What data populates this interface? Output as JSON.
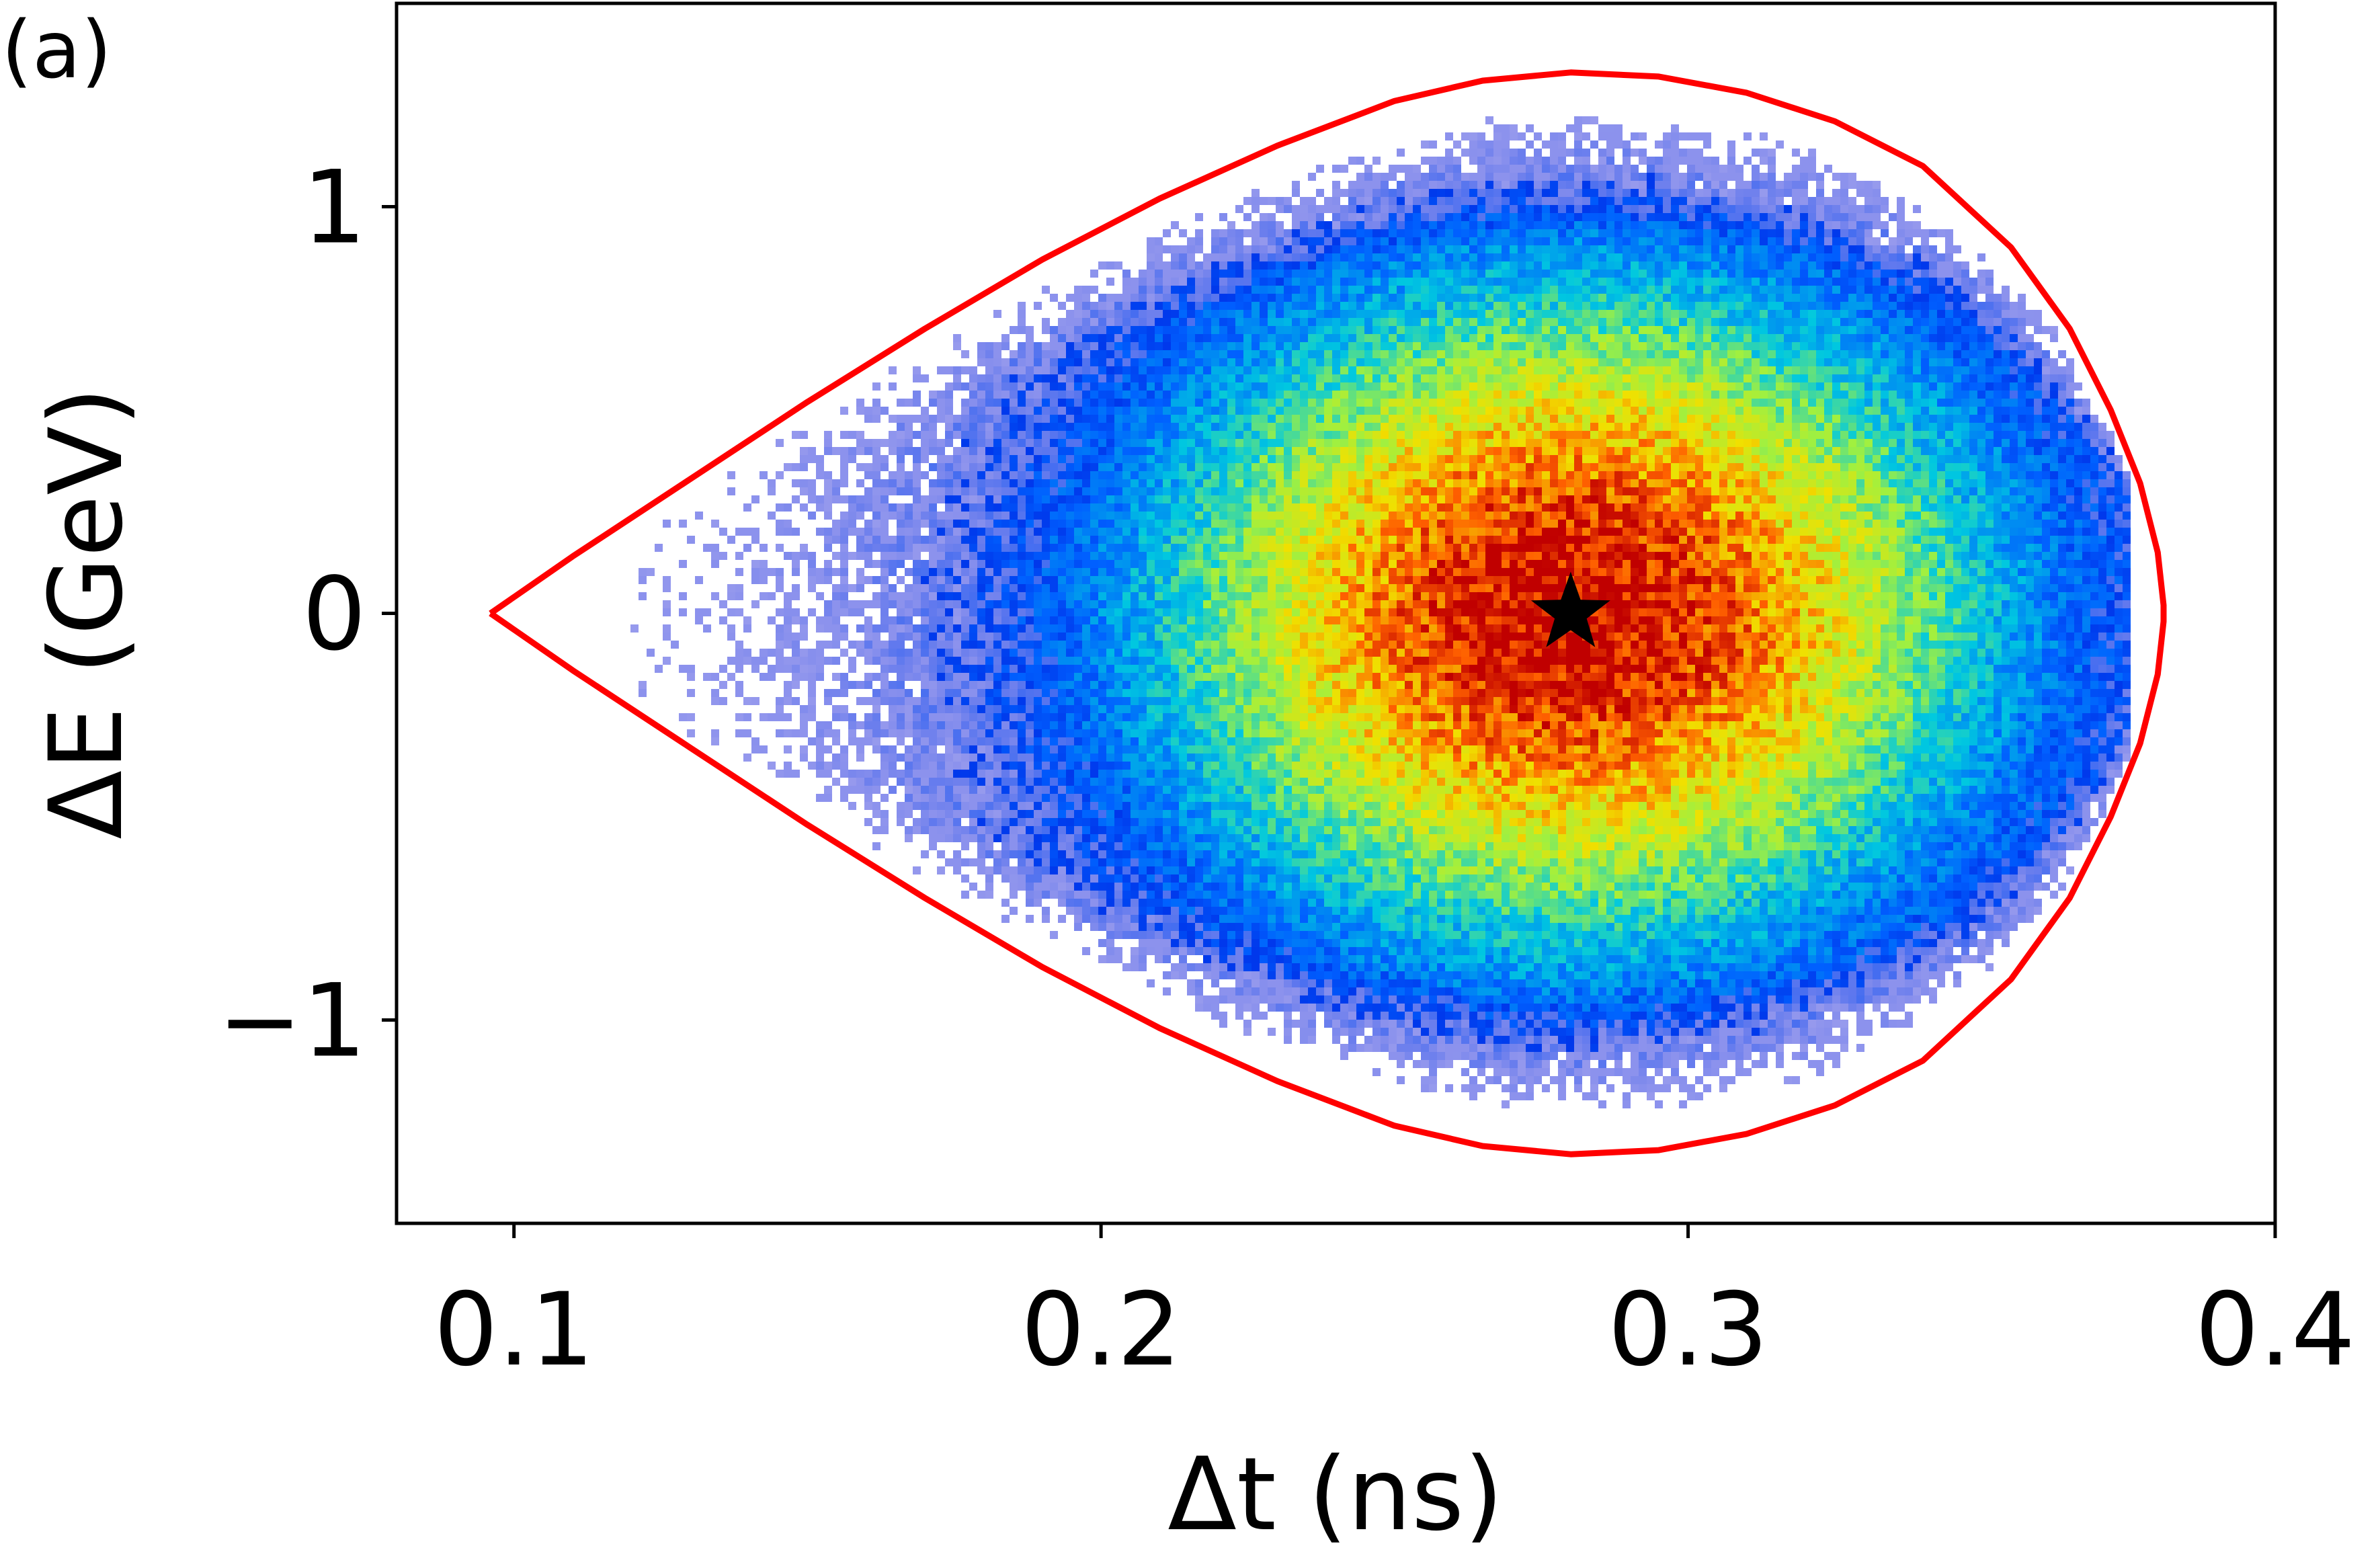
{
  "chart_data": {
    "type": "heatmap",
    "panel_label": "(a)",
    "xlabel": "Δt (ns)",
    "ylabel": "ΔE (GeV)",
    "xlim": [
      0.08,
      0.4
    ],
    "ylim": [
      -1.5,
      1.5
    ],
    "xticks": [
      0.1,
      0.2,
      0.3,
      0.4
    ],
    "xtick_labels": [
      "0.1",
      "0.2",
      "0.3",
      "0.4"
    ],
    "yticks": [
      -1,
      0,
      1
    ],
    "ytick_labels": [
      "−1",
      "0",
      "1"
    ],
    "grid": false,
    "colormap": [
      "#ffffff",
      "#0000d0",
      "#0060ff",
      "#00c8e0",
      "#a0f040",
      "#f0e000",
      "#ff6000",
      "#c00000"
    ],
    "distribution": {
      "center": [
        0.28,
        0.0
      ],
      "sigma_t": 0.048,
      "sigma_E": 0.55,
      "t_range": [
        0.12,
        0.375
      ],
      "E_range": [
        -1.3,
        1.3
      ]
    },
    "separatrix": {
      "color": "#ff0000",
      "x": [
        0.096,
        0.11,
        0.13,
        0.15,
        0.17,
        0.19,
        0.21,
        0.23,
        0.25,
        0.265,
        0.28,
        0.295,
        0.31,
        0.325,
        0.34,
        0.355,
        0.365,
        0.372,
        0.377,
        0.38,
        0.381
      ],
      "E_upper": [
        0.0,
        0.14,
        0.33,
        0.52,
        0.7,
        0.87,
        1.02,
        1.15,
        1.26,
        1.31,
        1.33,
        1.32,
        1.28,
        1.21,
        1.1,
        0.9,
        0.7,
        0.5,
        0.32,
        0.15,
        0.02
      ]
    },
    "marker": {
      "symbol": "star",
      "x": 0.28,
      "y": 0.0,
      "color": "#000000"
    }
  }
}
